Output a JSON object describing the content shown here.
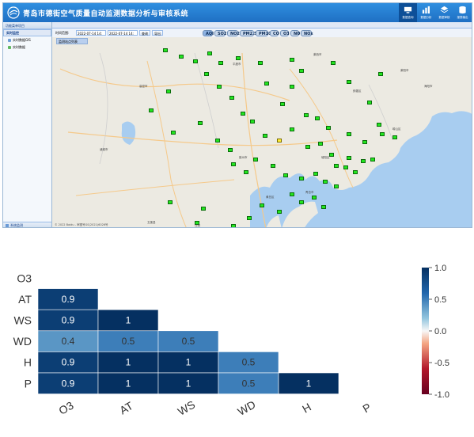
{
  "app": {
    "title": "青岛市德街空气质量自动监测数据分析与审核系统",
    "nav": [
      {
        "label": "数据查询",
        "icon": "monitor-icon"
      },
      {
        "label": "数据分析",
        "icon": "bar-chart-icon"
      },
      {
        "label": "数据审核",
        "icon": "layers-icon"
      },
      {
        "label": "报表输出",
        "icon": "database-icon"
      }
    ],
    "sidebar": {
      "header": "功能菜单项目",
      "items": [
        {
          "label": "实时监控",
          "selected": true
        },
        {
          "label": "实时数据GIS"
        },
        {
          "label": "实时数据"
        }
      ],
      "bottom": "系统监测"
    },
    "tab": "首页",
    "toolbar": {
      "time_label": "时间范围:",
      "start_time": "2022-07-14 14:",
      "end_time": "2022-07-14 14:",
      "query_label": "查询",
      "export_label": "导出",
      "pollutants": [
        "AQI",
        "SO2",
        "NO2",
        "PM2.5",
        "PM10",
        "CO",
        "O3",
        "NO",
        "NOx"
      ],
      "selected_pollutant": "AQI",
      "sub_label": "监测站点列表"
    },
    "map": {
      "copyright": "© 2022 Baidu - 审图号GS(2021)6026号",
      "labels": [
        "莱西市",
        "平度市",
        "即墨区",
        "胶州市",
        "城阳区",
        "黄岛区",
        "崂山区",
        "青岛市",
        "诸城市",
        "高密市",
        "五莲县",
        "日照",
        "莱阳市",
        "海阳市"
      ]
    }
  },
  "chart_data": {
    "type": "heatmap",
    "title": "",
    "xlabel": "",
    "ylabel": "",
    "x_categories": [
      "O3",
      "AT",
      "WS",
      "WD",
      "H",
      "P"
    ],
    "y_categories": [
      "O3",
      "AT",
      "WS",
      "WD",
      "H",
      "P"
    ],
    "cells": [
      {
        "row": "AT",
        "col": "O3",
        "value": 0.9
      },
      {
        "row": "WS",
        "col": "O3",
        "value": 0.9
      },
      {
        "row": "WS",
        "col": "AT",
        "value": 1
      },
      {
        "row": "WD",
        "col": "O3",
        "value": 0.4
      },
      {
        "row": "WD",
        "col": "AT",
        "value": 0.5
      },
      {
        "row": "WD",
        "col": "WS",
        "value": 0.5
      },
      {
        "row": "H",
        "col": "O3",
        "value": 0.9
      },
      {
        "row": "H",
        "col": "AT",
        "value": 1
      },
      {
        "row": "H",
        "col": "WS",
        "value": 1
      },
      {
        "row": "H",
        "col": "WD",
        "value": 0.5
      },
      {
        "row": "P",
        "col": "O3",
        "value": 0.9
      },
      {
        "row": "P",
        "col": "AT",
        "value": 1
      },
      {
        "row": "P",
        "col": "WS",
        "value": 1
      },
      {
        "row": "P",
        "col": "WD",
        "value": 0.5
      },
      {
        "row": "P",
        "col": "H",
        "value": 1
      }
    ],
    "colorbar": {
      "range": [
        -1.0,
        1.0
      ],
      "ticks": [
        "1.0",
        "0.5",
        "0.0",
        "-0.5",
        "-1.0"
      ],
      "colors": {
        "high": "#053061",
        "mid": "#f7f7f7",
        "low": "#67001f"
      }
    }
  }
}
